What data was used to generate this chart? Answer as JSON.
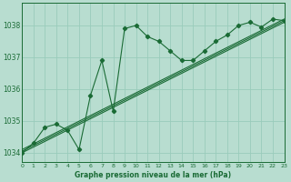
{
  "title": "Graphe pression niveau de la mer (hPa)",
  "background_color": "#b8ddd0",
  "grid_color": "#99ccbb",
  "line_color": "#1a6b35",
  "xlim": [
    0,
    23
  ],
  "ylim": [
    1033.7,
    1038.7
  ],
  "yticks": [
    1034,
    1035,
    1036,
    1037,
    1038
  ],
  "xtick_labels": [
    "0",
    "1",
    "2",
    "3",
    "4",
    "5",
    "6",
    "7",
    "8",
    "9",
    "10",
    "11",
    "12",
    "13",
    "14",
    "15",
    "16",
    "17",
    "18",
    "19",
    "20",
    "21",
    "22",
    "23"
  ],
  "xticks": [
    0,
    1,
    2,
    3,
    4,
    5,
    6,
    7,
    8,
    9,
    10,
    11,
    12,
    13,
    14,
    15,
    16,
    17,
    18,
    19,
    20,
    21,
    22,
    23
  ],
  "series": [
    {
      "x": [
        0,
        1,
        2,
        3,
        4,
        5,
        6,
        7,
        8,
        9,
        10,
        11,
        12,
        13,
        14,
        15,
        16,
        17,
        18,
        19,
        20,
        21,
        22,
        23
      ],
      "y": [
        1034.0,
        1034.3,
        1034.8,
        1034.9,
        1034.7,
        1034.1,
        1035.8,
        1036.9,
        1035.3,
        1037.9,
        1038.0,
        1037.65,
        1037.5,
        1037.2,
        1036.9,
        1036.9,
        1037.2,
        1037.5,
        1037.7,
        1038.0,
        1038.1,
        1037.95,
        1038.2,
        1038.15
      ]
    },
    {
      "x": [
        0,
        23
      ],
      "y": [
        1034.0,
        1038.1
      ]
    },
    {
      "x": [
        0,
        23
      ],
      "y": [
        1034.05,
        1038.15
      ]
    },
    {
      "x": [
        0,
        23
      ],
      "y": [
        1034.1,
        1038.2
      ]
    }
  ],
  "series_markers": [
    true,
    false,
    false,
    false
  ],
  "figsize": [
    3.2,
    2.0
  ],
  "dpi": 100
}
